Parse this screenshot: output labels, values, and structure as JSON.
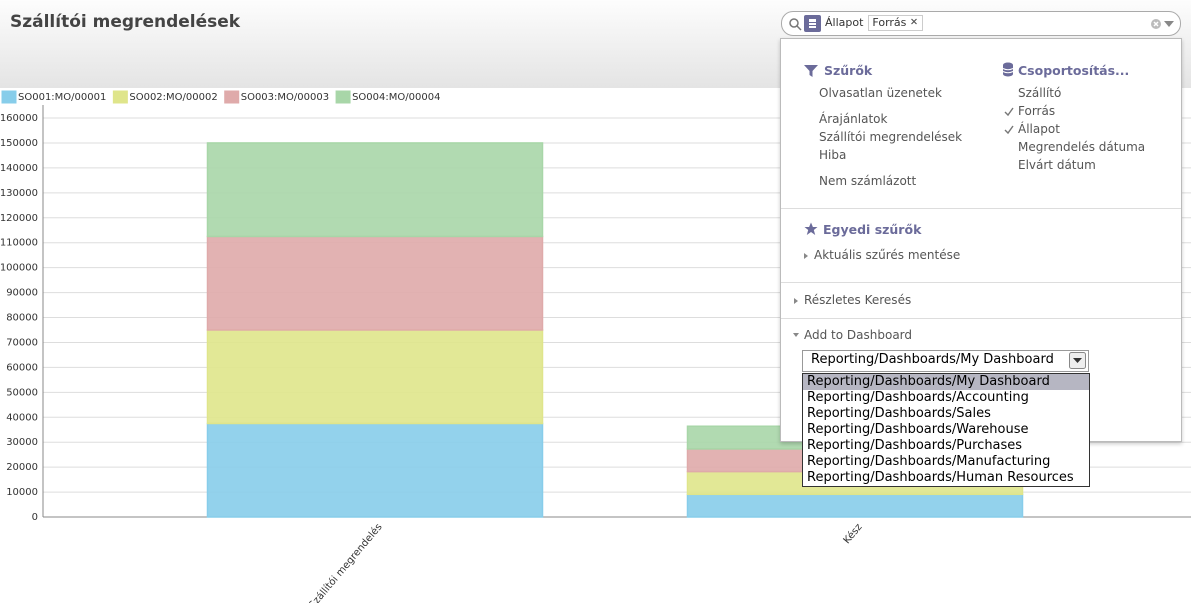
{
  "header": {
    "title": "Szállítói megrendelések"
  },
  "search": {
    "facets": [
      "Állapot",
      "Forrás"
    ]
  },
  "filters": {
    "title": "Szűrők",
    "groups": [
      [
        "Olvasatlan üzenetek"
      ],
      [
        "Árajánlatok",
        "Szállítói megrendelések",
        "Hiba"
      ],
      [
        "Nem számlázott"
      ]
    ]
  },
  "group_by": {
    "title": "Csoportosítás...",
    "items": [
      {
        "label": "Szállító",
        "checked": false
      },
      {
        "label": "Forrás",
        "checked": true
      },
      {
        "label": "Állapot",
        "checked": true
      },
      {
        "label": "Megrendelés dátuma",
        "checked": false
      },
      {
        "label": "Elvárt dátum",
        "checked": false
      }
    ]
  },
  "custom_filters": {
    "title": "Egyedi szűrők",
    "save": "Aktuális szűrés mentése"
  },
  "advanced_search": "Részletes Keresés",
  "add_to_dashboard": {
    "title": "Add to Dashboard",
    "selected": 0,
    "options": [
      "Reporting/Dashboards/My Dashboard",
      "Reporting/Dashboards/Accounting",
      "Reporting/Dashboards/Sales",
      "Reporting/Dashboards/Warehouse",
      "Reporting/Dashboards/Purchases",
      "Reporting/Dashboards/Manufacturing",
      "Reporting/Dashboards/Human Resources"
    ]
  },
  "chart_data": {
    "type": "stacked_bar",
    "categories": [
      "Szállítói megrendelés",
      "Kész"
    ],
    "series": [
      {
        "name": "SO001:MO/00001",
        "color": "#87cdea",
        "values": [
          37500,
          9100
        ]
      },
      {
        "name": "SO002:MO/00002",
        "color": "#dfe58b",
        "values": [
          37500,
          9100
        ]
      },
      {
        "name": "SO003:MO/00003",
        "color": "#dfaaaa",
        "values": [
          37500,
          9100
        ]
      },
      {
        "name": "SO004:MO/00004",
        "color": "#a8d6a8",
        "values": [
          37500,
          9100
        ]
      }
    ],
    "ylim": [
      0,
      160000
    ],
    "yticks": [
      0,
      10000,
      20000,
      30000,
      40000,
      50000,
      60000,
      70000,
      80000,
      90000,
      100000,
      110000,
      120000,
      130000,
      140000,
      150000,
      160000
    ],
    "grid": true,
    "legend": "top-left"
  }
}
